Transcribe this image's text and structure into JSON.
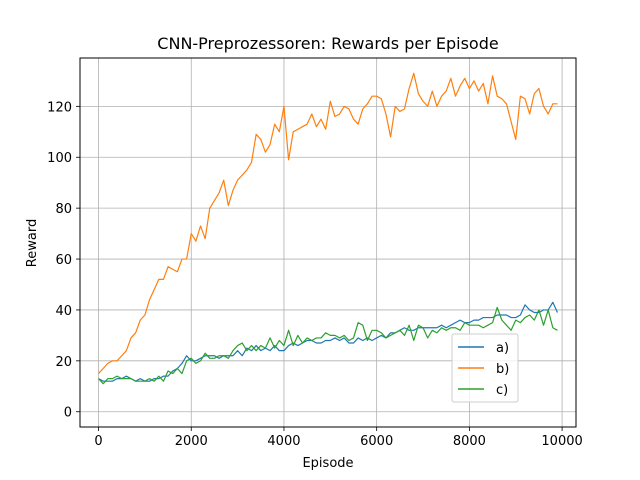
{
  "chart_data": {
    "type": "line",
    "title": "CNN-Preprozessoren: Rewards per Episode",
    "xlabel": "Episode",
    "ylabel": "Reward",
    "xlim": [
      -400,
      10300
    ],
    "ylim": [
      -6,
      139
    ],
    "xticks": [
      0,
      2000,
      4000,
      6000,
      8000,
      10000
    ],
    "yticks": [
      0,
      20,
      40,
      60,
      80,
      100,
      120
    ],
    "grid": true,
    "legend_position": "lower-right",
    "x": [
      0,
      100,
      200,
      300,
      400,
      500,
      600,
      700,
      800,
      900,
      1000,
      1100,
      1200,
      1300,
      1400,
      1500,
      1600,
      1700,
      1800,
      1900,
      2000,
      2100,
      2200,
      2300,
      2400,
      2500,
      2600,
      2700,
      2800,
      2900,
      3000,
      3100,
      3200,
      3300,
      3400,
      3500,
      3600,
      3700,
      3800,
      3900,
      4000,
      4100,
      4200,
      4300,
      4400,
      4500,
      4600,
      4700,
      4800,
      4900,
      5000,
      5100,
      5200,
      5300,
      5400,
      5500,
      5600,
      5700,
      5800,
      5900,
      6000,
      6100,
      6200,
      6300,
      6400,
      6500,
      6600,
      6700,
      6800,
      6900,
      7000,
      7100,
      7200,
      7300,
      7400,
      7500,
      7600,
      7700,
      7800,
      7900,
      8000,
      8100,
      8200,
      8300,
      8400,
      8500,
      8600,
      8700,
      8800,
      8900,
      9000,
      9100,
      9200,
      9300,
      9400,
      9500,
      9600,
      9700,
      9800,
      9900
    ],
    "series": [
      {
        "name": "a)",
        "color": "#1f77b4",
        "values": [
          13,
          12,
          12,
          12,
          13,
          13,
          14,
          13,
          12,
          13,
          12,
          12,
          13,
          13,
          14,
          14,
          16,
          17,
          19,
          22,
          20,
          20,
          21,
          22,
          22,
          22,
          21,
          22,
          22,
          22,
          24,
          22,
          25,
          24,
          26,
          24,
          25,
          24,
          26,
          24,
          24,
          26,
          27,
          26,
          27,
          28,
          28,
          27,
          27,
          28,
          28,
          29,
          28,
          29,
          27,
          27,
          29,
          28,
          29,
          28,
          29,
          30,
          29,
          31,
          31,
          32,
          33,
          32,
          32,
          33,
          33,
          33,
          33,
          33,
          34,
          33,
          34,
          35,
          36,
          35,
          35,
          36,
          36,
          37,
          37,
          37,
          38,
          38,
          38,
          37,
          37,
          38,
          42,
          40,
          39,
          39,
          40,
          40,
          43,
          39
        ]
      },
      {
        "name": "b)",
        "color": "#ff7f0e",
        "values": [
          15,
          17,
          19,
          20,
          20,
          22,
          24,
          29,
          31,
          36,
          38,
          44,
          48,
          52,
          52,
          57,
          56,
          55,
          60,
          60,
          70,
          67,
          73,
          68,
          80,
          83,
          86,
          91,
          81,
          87,
          91,
          93,
          95,
          98,
          109,
          107,
          102,
          105,
          113,
          110,
          120,
          99,
          110,
          111,
          112,
          113,
          117,
          112,
          115,
          111,
          122,
          116,
          117,
          120,
          119,
          115,
          113,
          119,
          121,
          124,
          124,
          123,
          117,
          108,
          120,
          118,
          119,
          127,
          133,
          125,
          122,
          120,
          126,
          120,
          124,
          126,
          131,
          124,
          128,
          131,
          127,
          130,
          126,
          129,
          121,
          132,
          124,
          123,
          121,
          114,
          107,
          124,
          123,
          117,
          125,
          127,
          120,
          117,
          121,
          121
        ]
      },
      {
        "name": "c)",
        "color": "#2ca02c",
        "values": [
          13,
          11,
          13,
          13,
          14,
          13,
          13,
          13,
          12,
          12,
          12,
          13,
          12,
          14,
          12,
          16,
          15,
          17,
          15,
          20,
          21,
          19,
          20,
          23,
          21,
          21,
          22,
          22,
          21,
          24,
          26,
          27,
          24,
          26,
          24,
          26,
          25,
          29,
          25,
          28,
          26,
          32,
          26,
          30,
          27,
          29,
          28,
          29,
          29,
          31,
          30,
          30,
          29,
          30,
          28,
          29,
          35,
          34,
          28,
          32,
          32,
          31,
          29,
          30,
          31,
          32,
          30,
          34,
          28,
          34,
          33,
          29,
          32,
          31,
          33,
          32,
          33,
          33,
          32,
          35,
          34,
          34,
          34,
          33,
          34,
          35,
          41,
          36,
          34,
          32,
          36,
          35,
          37,
          38,
          36,
          40,
          34,
          40,
          33,
          32
        ]
      }
    ]
  }
}
